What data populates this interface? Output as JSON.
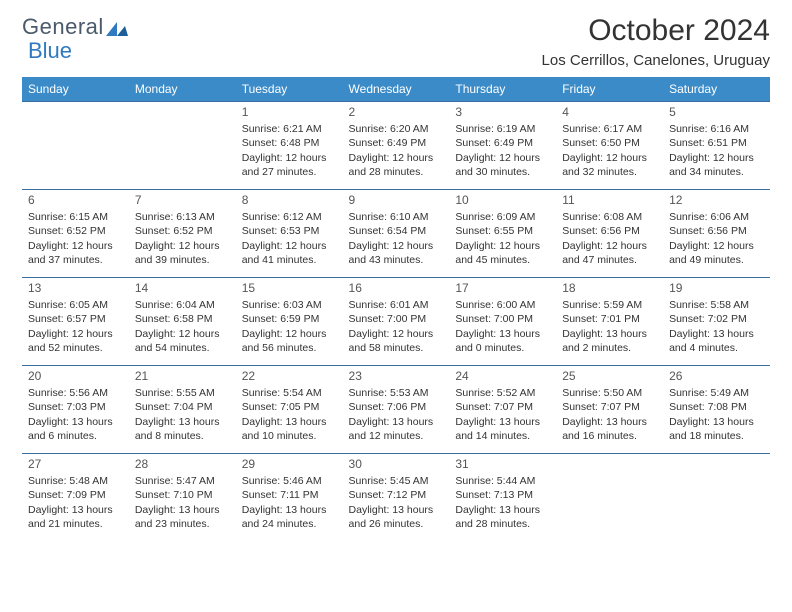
{
  "brand": {
    "name_a": "General",
    "name_b": "Blue"
  },
  "title": "October 2024",
  "location": "Los Cerrillos, Canelones, Uruguay",
  "colors": {
    "header_bg": "#3b8bc8",
    "header_text": "#ffffff",
    "row_border": "#3b6fa0",
    "brand_gray": "#4a5a6a",
    "brand_blue": "#2f7ac0",
    "text": "#333333",
    "page_bg": "#ffffff"
  },
  "day_headers": [
    "Sunday",
    "Monday",
    "Tuesday",
    "Wednesday",
    "Thursday",
    "Friday",
    "Saturday"
  ],
  "first_dow": 2,
  "days": [
    {
      "n": 1,
      "sr": "6:21 AM",
      "ss": "6:48 PM",
      "dl_a": "12 hours",
      "dl_b": "and 27 minutes."
    },
    {
      "n": 2,
      "sr": "6:20 AM",
      "ss": "6:49 PM",
      "dl_a": "12 hours",
      "dl_b": "and 28 minutes."
    },
    {
      "n": 3,
      "sr": "6:19 AM",
      "ss": "6:49 PM",
      "dl_a": "12 hours",
      "dl_b": "and 30 minutes."
    },
    {
      "n": 4,
      "sr": "6:17 AM",
      "ss": "6:50 PM",
      "dl_a": "12 hours",
      "dl_b": "and 32 minutes."
    },
    {
      "n": 5,
      "sr": "6:16 AM",
      "ss": "6:51 PM",
      "dl_a": "12 hours",
      "dl_b": "and 34 minutes."
    },
    {
      "n": 6,
      "sr": "6:15 AM",
      "ss": "6:52 PM",
      "dl_a": "12 hours",
      "dl_b": "and 37 minutes."
    },
    {
      "n": 7,
      "sr": "6:13 AM",
      "ss": "6:52 PM",
      "dl_a": "12 hours",
      "dl_b": "and 39 minutes."
    },
    {
      "n": 8,
      "sr": "6:12 AM",
      "ss": "6:53 PM",
      "dl_a": "12 hours",
      "dl_b": "and 41 minutes."
    },
    {
      "n": 9,
      "sr": "6:10 AM",
      "ss": "6:54 PM",
      "dl_a": "12 hours",
      "dl_b": "and 43 minutes."
    },
    {
      "n": 10,
      "sr": "6:09 AM",
      "ss": "6:55 PM",
      "dl_a": "12 hours",
      "dl_b": "and 45 minutes."
    },
    {
      "n": 11,
      "sr": "6:08 AM",
      "ss": "6:56 PM",
      "dl_a": "12 hours",
      "dl_b": "and 47 minutes."
    },
    {
      "n": 12,
      "sr": "6:06 AM",
      "ss": "6:56 PM",
      "dl_a": "12 hours",
      "dl_b": "and 49 minutes."
    },
    {
      "n": 13,
      "sr": "6:05 AM",
      "ss": "6:57 PM",
      "dl_a": "12 hours",
      "dl_b": "and 52 minutes."
    },
    {
      "n": 14,
      "sr": "6:04 AM",
      "ss": "6:58 PM",
      "dl_a": "12 hours",
      "dl_b": "and 54 minutes."
    },
    {
      "n": 15,
      "sr": "6:03 AM",
      "ss": "6:59 PM",
      "dl_a": "12 hours",
      "dl_b": "and 56 minutes."
    },
    {
      "n": 16,
      "sr": "6:01 AM",
      "ss": "7:00 PM",
      "dl_a": "12 hours",
      "dl_b": "and 58 minutes."
    },
    {
      "n": 17,
      "sr": "6:00 AM",
      "ss": "7:00 PM",
      "dl_a": "13 hours",
      "dl_b": "and 0 minutes."
    },
    {
      "n": 18,
      "sr": "5:59 AM",
      "ss": "7:01 PM",
      "dl_a": "13 hours",
      "dl_b": "and 2 minutes."
    },
    {
      "n": 19,
      "sr": "5:58 AM",
      "ss": "7:02 PM",
      "dl_a": "13 hours",
      "dl_b": "and 4 minutes."
    },
    {
      "n": 20,
      "sr": "5:56 AM",
      "ss": "7:03 PM",
      "dl_a": "13 hours",
      "dl_b": "and 6 minutes."
    },
    {
      "n": 21,
      "sr": "5:55 AM",
      "ss": "7:04 PM",
      "dl_a": "13 hours",
      "dl_b": "and 8 minutes."
    },
    {
      "n": 22,
      "sr": "5:54 AM",
      "ss": "7:05 PM",
      "dl_a": "13 hours",
      "dl_b": "and 10 minutes."
    },
    {
      "n": 23,
      "sr": "5:53 AM",
      "ss": "7:06 PM",
      "dl_a": "13 hours",
      "dl_b": "and 12 minutes."
    },
    {
      "n": 24,
      "sr": "5:52 AM",
      "ss": "7:07 PM",
      "dl_a": "13 hours",
      "dl_b": "and 14 minutes."
    },
    {
      "n": 25,
      "sr": "5:50 AM",
      "ss": "7:07 PM",
      "dl_a": "13 hours",
      "dl_b": "and 16 minutes."
    },
    {
      "n": 26,
      "sr": "5:49 AM",
      "ss": "7:08 PM",
      "dl_a": "13 hours",
      "dl_b": "and 18 minutes."
    },
    {
      "n": 27,
      "sr": "5:48 AM",
      "ss": "7:09 PM",
      "dl_a": "13 hours",
      "dl_b": "and 21 minutes."
    },
    {
      "n": 28,
      "sr": "5:47 AM",
      "ss": "7:10 PM",
      "dl_a": "13 hours",
      "dl_b": "and 23 minutes."
    },
    {
      "n": 29,
      "sr": "5:46 AM",
      "ss": "7:11 PM",
      "dl_a": "13 hours",
      "dl_b": "and 24 minutes."
    },
    {
      "n": 30,
      "sr": "5:45 AM",
      "ss": "7:12 PM",
      "dl_a": "13 hours",
      "dl_b": "and 26 minutes."
    },
    {
      "n": 31,
      "sr": "5:44 AM",
      "ss": "7:13 PM",
      "dl_a": "13 hours",
      "dl_b": "and 28 minutes."
    }
  ],
  "labels": {
    "sunrise": "Sunrise:",
    "sunset": "Sunset:",
    "daylight": "Daylight:"
  }
}
